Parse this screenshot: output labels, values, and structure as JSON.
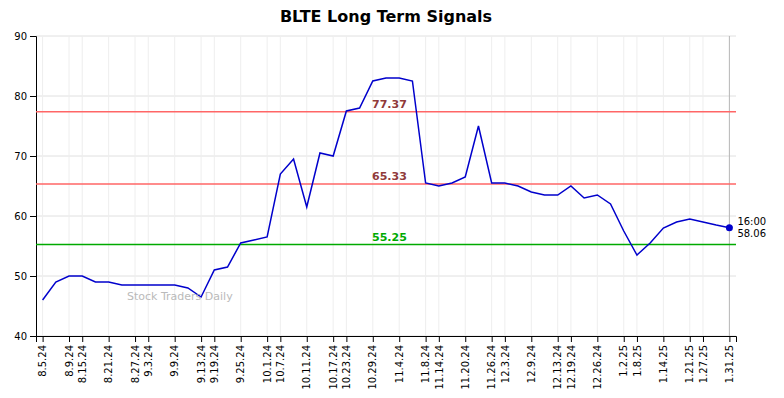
{
  "chart_data": {
    "type": "line",
    "title": "BLTE Long Term Signals",
    "categories": [
      "8.5.24",
      null,
      "8.9.24",
      "8.15.24",
      null,
      "8.21.24",
      null,
      "8.27.24",
      "9.3.24",
      null,
      "9.9.24",
      null,
      "9.13.24",
      "9.19.24",
      null,
      "9.25.24",
      null,
      "10.1.24",
      "10.7.24",
      null,
      "10.11.24",
      null,
      "10.17.24",
      "10.23.24",
      null,
      "10.29.24",
      null,
      "11.4.24",
      null,
      "11.8.24",
      "11.14.24",
      null,
      "11.20.24",
      null,
      "11.26.24",
      "12.3.24",
      null,
      "12.9.24",
      null,
      "12.13.24",
      "12.19.24",
      null,
      "12.26.24",
      null,
      "1.2.25",
      "1.8.25",
      null,
      "1.14.25",
      null,
      "1.21.25",
      "1.27.25",
      null,
      "1.31.25"
    ],
    "values": [
      46.0,
      49.0,
      50.0,
      50.0,
      49.0,
      49.0,
      48.5,
      48.5,
      48.5,
      48.5,
      48.5,
      48.0,
      46.5,
      51.0,
      51.5,
      55.5,
      56.0,
      56.5,
      67.0,
      69.5,
      61.5,
      70.5,
      70.0,
      77.5,
      78.0,
      82.5,
      83.0,
      83.0,
      82.5,
      65.5,
      65.0,
      65.5,
      66.5,
      75.0,
      65.5,
      65.5,
      65.0,
      64.0,
      63.5,
      63.5,
      65.0,
      63.0,
      63.5,
      62.0,
      57.5,
      53.5,
      55.5,
      58.0,
      59.0,
      59.5,
      59.0,
      58.5,
      58.06
    ],
    "color": "#0000cc",
    "marker": "end",
    "ylim": [
      40,
      90
    ],
    "yticks": [
      40,
      50,
      60,
      70,
      80,
      90
    ],
    "grid": true,
    "reference_lines": [
      {
        "value": 55.25,
        "label": "55.25",
        "color": "#00aa00"
      },
      {
        "value": 65.33,
        "label": "65.33",
        "color": "#ff6666"
      },
      {
        "value": 77.37,
        "label": "77.37",
        "color": "#ff6666"
      }
    ],
    "annotations": [
      {
        "text": "16:00\n58.06",
        "y": 58.06
      },
      {
        "text": "Stock Traders Daily"
      }
    ]
  }
}
